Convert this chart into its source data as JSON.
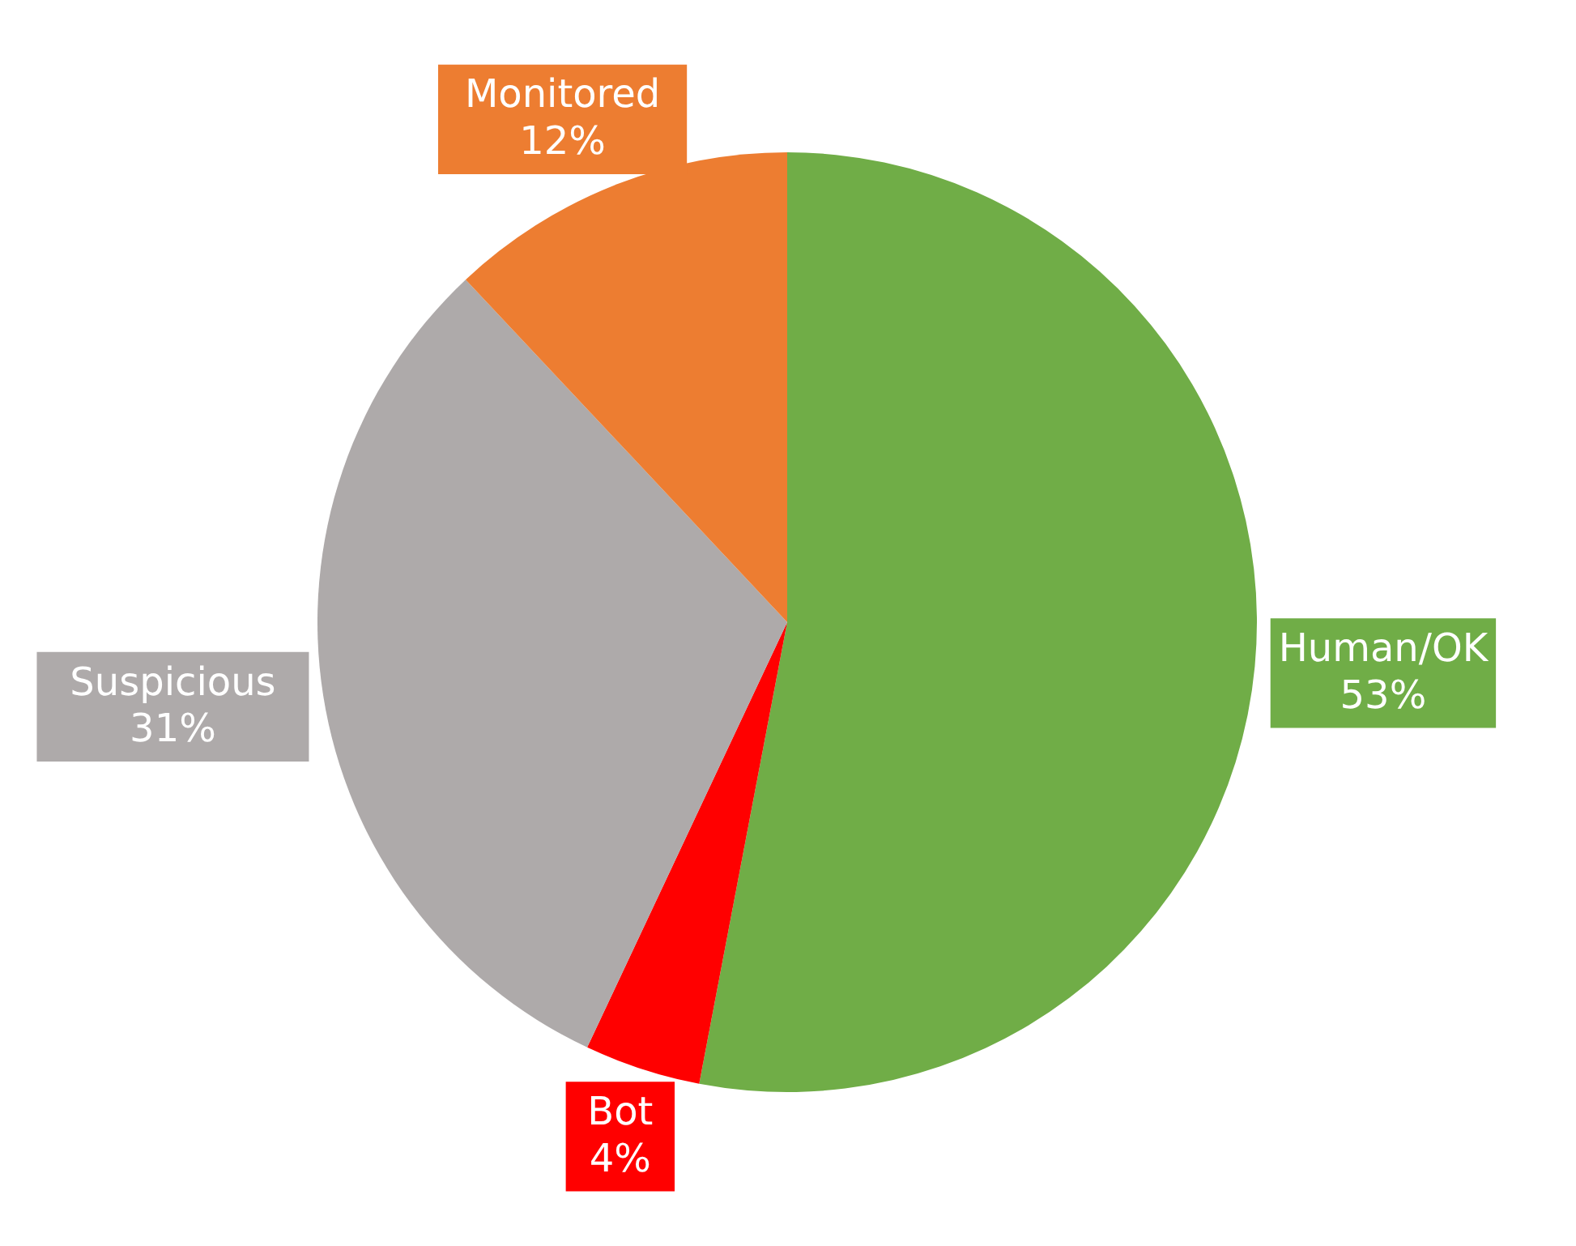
{
  "chart_data": {
    "type": "pie",
    "categories": [
      "Human/OK",
      "Bot",
      "Suspicious",
      "Monitored"
    ],
    "values": [
      53,
      4,
      31,
      12
    ],
    "colors": [
      "#70ad47",
      "#ff0000",
      "#aeaaaa",
      "#ed7d31"
    ],
    "value_labels": [
      "53%",
      "4%",
      "31%",
      "12%"
    ]
  }
}
